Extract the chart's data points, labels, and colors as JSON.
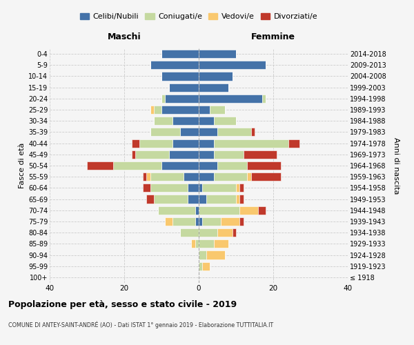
{
  "age_groups": [
    "100+",
    "95-99",
    "90-94",
    "85-89",
    "80-84",
    "75-79",
    "70-74",
    "65-69",
    "60-64",
    "55-59",
    "50-54",
    "45-49",
    "40-44",
    "35-39",
    "30-34",
    "25-29",
    "20-24",
    "15-19",
    "10-14",
    "5-9",
    "0-4"
  ],
  "birth_years": [
    "≤ 1918",
    "1919-1923",
    "1924-1928",
    "1929-1933",
    "1934-1938",
    "1939-1943",
    "1944-1948",
    "1949-1953",
    "1954-1958",
    "1959-1963",
    "1964-1968",
    "1969-1973",
    "1974-1978",
    "1979-1983",
    "1984-1988",
    "1989-1993",
    "1994-1998",
    "1999-2003",
    "2004-2008",
    "2009-2013",
    "2014-2018"
  ],
  "males": {
    "celibi": [
      0,
      0,
      0,
      0,
      0,
      1,
      1,
      3,
      3,
      4,
      10,
      8,
      7,
      5,
      7,
      10,
      9,
      8,
      10,
      13,
      10
    ],
    "coniugati": [
      0,
      0,
      0,
      1,
      5,
      6,
      10,
      9,
      10,
      9,
      13,
      9,
      9,
      8,
      5,
      2,
      1,
      0,
      0,
      0,
      0
    ],
    "vedovi": [
      0,
      0,
      0,
      1,
      0,
      2,
      0,
      0,
      0,
      1,
      0,
      0,
      0,
      0,
      0,
      1,
      0,
      0,
      0,
      0,
      0
    ],
    "divorziati": [
      0,
      0,
      0,
      0,
      0,
      0,
      0,
      2,
      2,
      1,
      7,
      1,
      2,
      0,
      0,
      0,
      0,
      0,
      0,
      0,
      0
    ]
  },
  "females": {
    "nubili": [
      0,
      0,
      0,
      0,
      0,
      1,
      0,
      2,
      1,
      4,
      5,
      4,
      4,
      5,
      4,
      3,
      17,
      8,
      9,
      18,
      10
    ],
    "coniugate": [
      0,
      1,
      2,
      4,
      5,
      5,
      11,
      8,
      9,
      9,
      8,
      8,
      20,
      9,
      6,
      4,
      1,
      0,
      0,
      0,
      0
    ],
    "vedove": [
      0,
      2,
      5,
      4,
      4,
      5,
      5,
      1,
      1,
      1,
      0,
      0,
      0,
      0,
      0,
      0,
      0,
      0,
      0,
      0,
      0
    ],
    "divorziate": [
      0,
      0,
      0,
      0,
      1,
      1,
      2,
      1,
      1,
      8,
      9,
      9,
      3,
      1,
      0,
      0,
      0,
      0,
      0,
      0,
      0
    ]
  },
  "colors": {
    "celibi": "#4472a8",
    "coniugati": "#c5d9a0",
    "vedovi": "#f9c86e",
    "divorziati": "#c0392b"
  },
  "title": "Popolazione per età, sesso e stato civile - 2019",
  "subtitle": "COMUNE DI ANTEY-SAINT-ANDRÉ (AO) - Dati ISTAT 1° gennaio 2019 - Elaborazione TUTTITALIA.IT",
  "xlabel_left": "Maschi",
  "xlabel_right": "Femmine",
  "ylabel_left": "Fasce di età",
  "ylabel_right": "Anni di nascita",
  "xlim": 40,
  "legend_labels": [
    "Celibi/Nubili",
    "Coniugati/e",
    "Vedovi/e",
    "Divorziati/e"
  ],
  "bg_color": "#f5f5f5"
}
